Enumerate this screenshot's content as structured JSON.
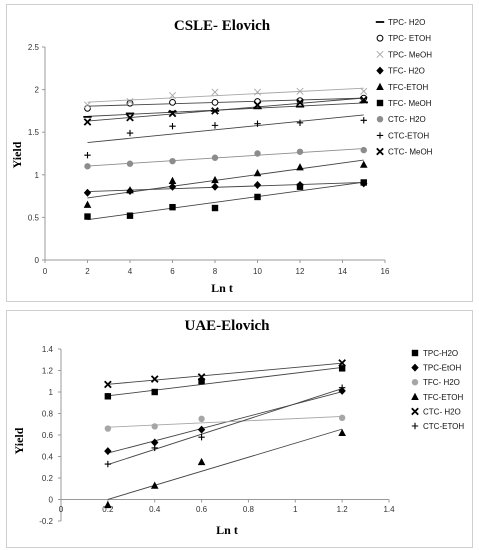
{
  "chart_data": [
    {
      "type": "scatter",
      "title": "CSLE- Elovich",
      "xlabel": "Ln t",
      "ylabel": "Yield",
      "xlim": [
        0,
        16
      ],
      "ylim": [
        0,
        2.5
      ],
      "xticks": [
        0,
        2,
        4,
        6,
        8,
        10,
        12,
        14,
        16
      ],
      "yticks": [
        0,
        0.5,
        1,
        1.5,
        2,
        2.5
      ],
      "xtick_labels": [
        "0",
        "2",
        "4",
        "6",
        "8",
        "10",
        "12",
        "14",
        "16"
      ],
      "ytick_labels": [
        "0",
        "0.5",
        "1",
        "1.5",
        "2",
        "2.5"
      ],
      "grid": false,
      "legend_position": "right",
      "trendlines": true,
      "series": [
        {
          "name": "TPC- H2O",
          "marker": "dash",
          "color": "#000000",
          "x": [
            2,
            4,
            6,
            8,
            10,
            12,
            15
          ],
          "y": [
            1.68,
            1.72,
            1.74,
            1.75,
            1.78,
            1.8,
            1.85
          ]
        },
        {
          "name": "TPC- ETOH",
          "marker": "circle-open",
          "color": "#000000",
          "x": [
            2,
            4,
            6,
            8,
            10,
            12,
            15
          ],
          "y": [
            1.78,
            1.84,
            1.85,
            1.85,
            1.86,
            1.87,
            1.9
          ]
        },
        {
          "name": "TPC- MeOH",
          "marker": "x-thin",
          "color": "#a6a6a6",
          "x": [
            2,
            4,
            6,
            8,
            10,
            12,
            15
          ],
          "y": [
            1.82,
            1.86,
            1.93,
            1.97,
            1.97,
            1.98,
            1.98
          ]
        },
        {
          "name": "TFC- H2O",
          "marker": "diamond",
          "color": "#000000",
          "x": [
            2,
            4,
            6,
            8,
            10,
            12,
            15
          ],
          "y": [
            0.79,
            0.81,
            0.86,
            0.86,
            0.88,
            0.88,
            0.9
          ]
        },
        {
          "name": "TFC-ETOH",
          "marker": "triangle",
          "color": "#000000",
          "x": [
            2,
            4,
            6,
            8,
            10,
            12,
            15
          ],
          "y": [
            0.65,
            0.82,
            0.93,
            0.94,
            1.02,
            1.09,
            1.12
          ]
        },
        {
          "name": "TFC- MeOH",
          "marker": "square",
          "color": "#000000",
          "x": [
            2,
            4,
            6,
            8,
            10,
            12,
            15
          ],
          "y": [
            0.51,
            0.52,
            0.62,
            0.61,
            0.74,
            0.86,
            0.91
          ]
        },
        {
          "name": "CTC- H2O",
          "marker": "circle",
          "color": "#8c8c8c",
          "x": [
            2,
            4,
            6,
            8,
            10,
            12,
            15
          ],
          "y": [
            1.1,
            1.13,
            1.16,
            1.2,
            1.25,
            1.27,
            1.29
          ]
        },
        {
          "name": "CTC-ETOH",
          "marker": "plus",
          "color": "#000000",
          "x": [
            2,
            4,
            6,
            8,
            10,
            12,
            15
          ],
          "y": [
            1.23,
            1.49,
            1.57,
            1.58,
            1.6,
            1.61,
            1.64
          ]
        },
        {
          "name": "CTC- MeOH",
          "marker": "x-bold",
          "color": "#000000",
          "x": [
            2,
            4,
            6,
            8,
            10,
            12,
            15
          ],
          "y": [
            1.62,
            1.67,
            1.72,
            1.75,
            1.82,
            1.85,
            1.88
          ]
        }
      ]
    },
    {
      "type": "scatter",
      "title": "UAE-Elovich",
      "xlabel": "Ln t",
      "ylabel": "Yield",
      "xlim": [
        0,
        1.4
      ],
      "ylim": [
        -0.2,
        1.4
      ],
      "xticks": [
        0,
        0.2,
        0.4,
        0.6,
        0.8,
        1,
        1.2,
        1.4
      ],
      "yticks": [
        -0.2,
        0,
        0.2,
        0.4,
        0.6,
        0.8,
        1,
        1.2,
        1.4
      ],
      "xtick_labels": [
        "0",
        "0.2",
        "0.4",
        "0.6",
        "0.8",
        "1",
        "1.2",
        "1.4"
      ],
      "ytick_labels": [
        "-0.2",
        "0",
        "0.2",
        "0.4",
        "0.6",
        "0.8",
        "1",
        "1.2",
        "1.4"
      ],
      "grid": false,
      "legend_position": "right",
      "trendlines": true,
      "series": [
        {
          "name": "TPC-H2O",
          "marker": "square",
          "color": "#000000",
          "x": [
            0.2,
            0.4,
            0.6,
            1.2
          ],
          "y": [
            0.96,
            1.0,
            1.1,
            1.22
          ]
        },
        {
          "name": "TPC-EtOH",
          "marker": "diamond",
          "color": "#000000",
          "x": [
            0.2,
            0.4,
            0.6,
            1.2
          ],
          "y": [
            0.45,
            0.53,
            0.65,
            1.01
          ]
        },
        {
          "name": "TFC- H2O",
          "marker": "circle",
          "color": "#a6a6a6",
          "x": [
            0.2,
            0.4,
            0.6,
            1.2
          ],
          "y": [
            0.66,
            0.68,
            0.75,
            0.76
          ]
        },
        {
          "name": "TFC-ETOH",
          "marker": "triangle",
          "color": "#000000",
          "x": [
            0.2,
            0.4,
            0.6,
            1.2
          ],
          "y": [
            -0.05,
            0.13,
            0.35,
            0.62
          ]
        },
        {
          "name": "CTC- H2O",
          "marker": "x-bold",
          "color": "#000000",
          "x": [
            0.2,
            0.4,
            0.6,
            1.2
          ],
          "y": [
            1.07,
            1.12,
            1.14,
            1.27
          ]
        },
        {
          "name": "CTC-ETOH",
          "marker": "plus",
          "color": "#000000",
          "x": [
            0.2,
            0.4,
            0.6,
            1.2
          ],
          "y": [
            0.33,
            0.48,
            0.58,
            1.04
          ]
        }
      ]
    }
  ]
}
